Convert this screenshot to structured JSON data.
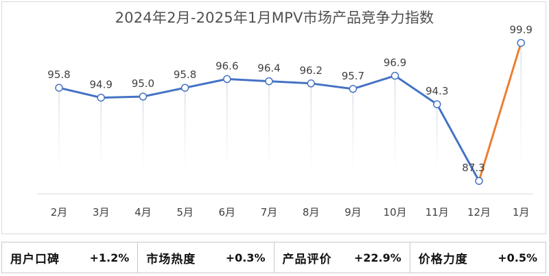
{
  "chart_data": {
    "type": "line",
    "title": "2024年2月-2025年1月MPV市场产品竞争力指数",
    "categories": [
      "2月",
      "3月",
      "4月",
      "5月",
      "6月",
      "7月",
      "8月",
      "9月",
      "10月",
      "11月",
      "12月",
      "1月"
    ],
    "values": [
      95.8,
      94.9,
      95.0,
      95.8,
      96.6,
      96.4,
      96.2,
      95.7,
      96.9,
      94.3,
      87.3,
      99.9
    ],
    "data_labels": [
      "95.8",
      "94.9",
      "95.0",
      "95.8",
      "96.6",
      "96.4",
      "96.2",
      "95.7",
      "96.9",
      "94.3",
      "87.3",
      "99.9"
    ],
    "ylim": [
      86,
      101
    ],
    "line_color": "#4472c4",
    "highlight_color": "#ed7d31",
    "highlight_last_segment": true,
    "grid": false,
    "drop_lines": true
  },
  "metrics": [
    {
      "label": "用户口碑",
      "value": "+1.2%"
    },
    {
      "label": "市场热度",
      "value": "+0.3%"
    },
    {
      "label": "产品评价",
      "value": "+22.9%"
    },
    {
      "label": "价格力度",
      "value": "+0.5%"
    }
  ]
}
